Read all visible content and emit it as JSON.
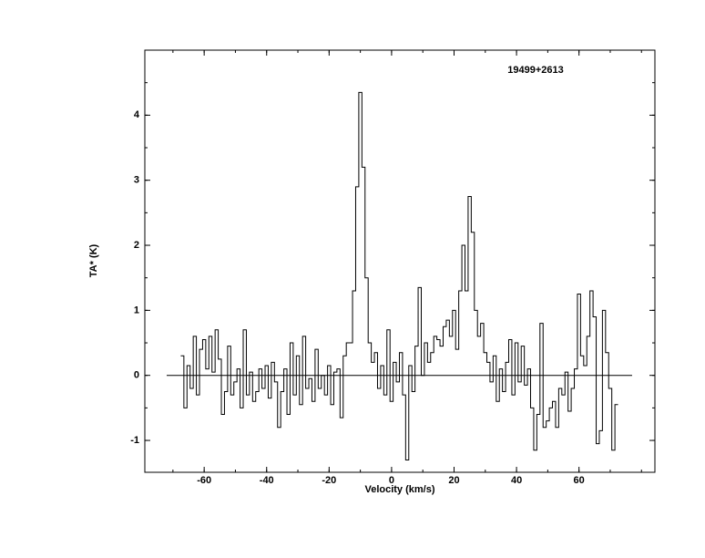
{
  "chart_data": {
    "type": "step",
    "title": "19499+2613",
    "xlabel": "Velocity (km/s)",
    "ylabel": "TA* (K)",
    "x": [
      -67,
      -66,
      -65,
      -64,
      -63,
      -62,
      -61,
      -60,
      -59,
      -58,
      -57,
      -56,
      -55,
      -54,
      -53,
      -52,
      -51,
      -50,
      -49,
      -48,
      -47,
      -46,
      -45,
      -44,
      -43,
      -42,
      -41,
      -40,
      -39,
      -38,
      -37,
      -36,
      -35,
      -34,
      -33,
      -32,
      -31,
      -30,
      -29,
      -28,
      -27,
      -26,
      -25,
      -24,
      -23,
      -22,
      -21,
      -20,
      -19,
      -18,
      -17,
      -16,
      -15,
      -14,
      -13,
      -12,
      -11,
      -10,
      -9,
      -8,
      -7,
      -6,
      -5,
      -4,
      -3,
      -2,
      -1,
      0,
      1,
      2,
      3,
      4,
      5,
      6,
      7,
      8,
      9,
      10,
      11,
      12,
      13,
      14,
      15,
      16,
      17,
      18,
      19,
      20,
      21,
      22,
      23,
      24,
      25,
      26,
      27,
      28,
      29,
      30,
      31,
      32,
      33,
      34,
      35,
      36,
      37,
      38,
      39,
      40,
      41,
      42,
      43,
      44,
      45,
      46,
      47,
      48,
      49,
      50,
      51,
      52,
      53,
      54,
      55,
      56,
      57,
      58,
      59,
      60,
      61,
      62,
      63,
      64,
      65,
      66,
      67,
      68,
      69,
      70,
      71,
      72
    ],
    "values": [
      0.3,
      -0.5,
      0.15,
      -0.2,
      0.6,
      -0.3,
      0.4,
      0.55,
      0.1,
      0.6,
      0.05,
      0.7,
      0.25,
      -0.6,
      -0.25,
      0.45,
      -0.3,
      -0.1,
      0.1,
      -0.5,
      0.7,
      -0.3,
      0.05,
      -0.4,
      -0.25,
      0.1,
      -0.2,
      0.15,
      -0.35,
      0.2,
      -0.1,
      -0.8,
      -0.25,
      0.1,
      -0.6,
      0.5,
      -0.3,
      0.3,
      -0.45,
      0.6,
      -0.2,
      -0.05,
      -0.4,
      0.4,
      -0.2,
      0.0,
      -0.3,
      0.15,
      -0.45,
      0.05,
      0.1,
      -0.65,
      0.3,
      0.5,
      0.5,
      1.3,
      2.9,
      4.35,
      3.2,
      1.5,
      0.5,
      0.2,
      0.35,
      -0.2,
      0.15,
      -0.3,
      0.7,
      -0.4,
      0.2,
      -0.1,
      0.35,
      -0.3,
      -1.3,
      0.15,
      -0.25,
      0.45,
      1.35,
      0.0,
      0.5,
      0.2,
      0.35,
      0.6,
      0.55,
      0.45,
      0.75,
      0.85,
      0.6,
      1.0,
      0.4,
      1.3,
      2.0,
      1.3,
      2.75,
      2.2,
      1.0,
      0.6,
      0.8,
      0.35,
      0.2,
      -0.1,
      0.3,
      -0.4,
      0.1,
      -0.25,
      0.2,
      0.55,
      -0.3,
      0.5,
      -0.1,
      0.45,
      -0.15,
      0.1,
      -0.5,
      -1.15,
      -0.6,
      0.8,
      -0.8,
      -0.7,
      -0.5,
      -0.4,
      -0.8,
      -0.2,
      -0.3,
      0.05,
      -0.55,
      -0.2,
      0.1,
      1.25,
      0.3,
      0.15,
      0.6,
      1.3,
      0.9,
      -1.05,
      -0.85,
      1.0,
      0.35,
      -0.2,
      -1.15,
      -0.45
    ],
    "color": "#000000",
    "xlim": [
      -79,
      84.3
    ],
    "ylim": [
      -1.49,
      5.0
    ],
    "xticks": [
      -60,
      -40,
      -20,
      0,
      20,
      40,
      60
    ],
    "yticks": [
      -1,
      0,
      1,
      2,
      3,
      4
    ],
    "hline": {
      "y": 0,
      "xrange": [
        -72,
        77
      ]
    }
  }
}
